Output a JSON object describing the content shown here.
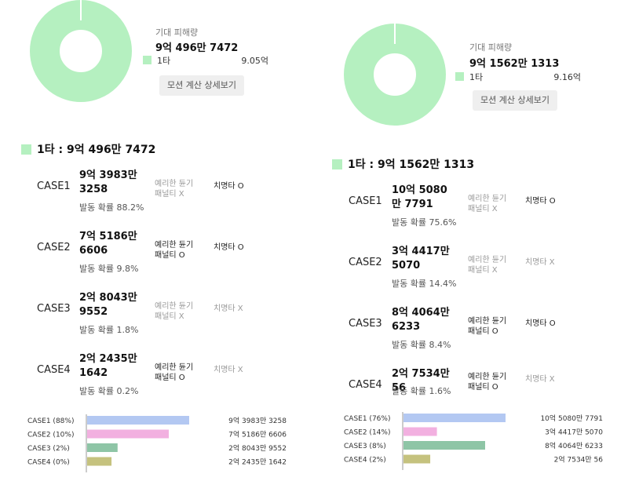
{
  "panels": [
    {
      "expected_label": "기대 피해량",
      "expected_value": "9억 496만 7472",
      "donut": {
        "color": "#b5f0c0",
        "share": 1.0
      },
      "legend": {
        "name": "1타",
        "value": "9.05억",
        "color": "#b5f0c0"
      },
      "detail_button": "모션 계산 상세보기",
      "summary": "1타 : 9억 496만 7472",
      "cases": [
        {
          "name": "CASE1",
          "damage": "9억 3983만 3258",
          "probability": "발동 확률 88.2%",
          "blade": "예리한 듄기 패널티 X",
          "blade_on": false,
          "crit": "치명타 O",
          "crit_on": true
        },
        {
          "name": "CASE2",
          "damage": "7억 5186만 6606",
          "probability": "발동 확률 9.8%",
          "blade": "예리한 듄기 패널티 O",
          "blade_on": true,
          "crit": "치명타 O",
          "crit_on": true
        },
        {
          "name": "CASE3",
          "damage": "2억 8043만 9552",
          "probability": "발동 확률 1.8%",
          "blade": "예리한 듄기 패널티 X",
          "blade_on": false,
          "crit": "치명타 X",
          "crit_on": false
        },
        {
          "name": "CASE4",
          "damage": "2억 2435만 1642",
          "probability": "발동 확률 0.2%",
          "blade": "예리한 듄기 패널티 O",
          "blade_on": true,
          "crit": "치명타 X",
          "crit_on": false
        }
      ],
      "bar_chart": {
        "max_value": 93983.3258,
        "rows": [
          {
            "label": "CASE1 (88%)",
            "value": 93983.3258,
            "value_text": "9억 3983만 3258",
            "color": "#b3c8f2"
          },
          {
            "label": "CASE2 (10%)",
            "value": 75186.6606,
            "value_text": "7억 5186만 6606",
            "color": "#f2b0e0"
          },
          {
            "label": "CASE3 (2%)",
            "value": 28043.9552,
            "value_text": "2억 8043만 9552",
            "color": "#8ec5a6"
          },
          {
            "label": "CASE4 (0%)",
            "value": 22435.1642,
            "value_text": "2억 2435만 1642",
            "color": "#c5c27e"
          }
        ]
      }
    },
    {
      "expected_label": "기대 피해량",
      "expected_value": "9억 1562만 1313",
      "donut": {
        "color": "#b5f0c0",
        "share": 1.0
      },
      "legend": {
        "name": "1타",
        "value": "9.16억",
        "color": "#b5f0c0"
      },
      "detail_button": "모션 계산 상세보기",
      "summary": "1타 : 9억 1562만 1313",
      "cases": [
        {
          "name": "CASE1",
          "damage": "10억 5080만 7791",
          "probability": "발동 확률 75.6%",
          "blade": "예리한 듄기 패널티 X",
          "blade_on": false,
          "crit": "치명타 O",
          "crit_on": true
        },
        {
          "name": "CASE2",
          "damage": "3억 4417만 5070",
          "probability": "발동 확률 14.4%",
          "blade": "예리한 듄기 패널티 X",
          "blade_on": false,
          "crit": "치명타 X",
          "crit_on": false
        },
        {
          "name": "CASE3",
          "damage": "8억 4064만 6233",
          "probability": "발동 확률 8.4%",
          "blade": "예리한 듄기 패널티 O",
          "blade_on": true,
          "crit": "치명타 O",
          "crit_on": true
        },
        {
          "name": "CASE4",
          "damage": "2억 7534만 56",
          "probability": "발동 확률 1.6%",
          "blade": "예리한 듄기 패널티 O",
          "blade_on": true,
          "crit": "치명타 X",
          "crit_on": false
        }
      ],
      "bar_chart": {
        "max_value": 105080.7791,
        "rows": [
          {
            "label": "CASE1 (76%)",
            "value": 105080.7791,
            "value_text": "10억 5080만 7791",
            "color": "#b3c8f2"
          },
          {
            "label": "CASE2 (14%)",
            "value": 34417.507,
            "value_text": "3억 4417만 5070",
            "color": "#f2b0e0"
          },
          {
            "label": "CASE3 (8%)",
            "value": 84064.6233,
            "value_text": "8억 4064만 6233",
            "color": "#8ec5a6"
          },
          {
            "label": "CASE4 (2%)",
            "value": 27534.0056,
            "value_text": "2억 7534만 56",
            "color": "#c5c27e"
          }
        ]
      }
    }
  ]
}
